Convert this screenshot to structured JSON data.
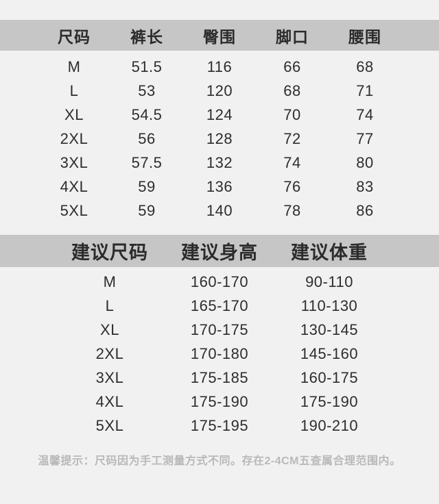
{
  "colors": {
    "background": "#f1f1f1",
    "header_band": "#c6c6c6",
    "text": "#2d2d2d",
    "note_text": "#b9b9b9"
  },
  "size_table": {
    "headers": [
      "尺码",
      "裤长",
      "臀围",
      "脚口",
      "腰围"
    ],
    "rows": [
      [
        "M",
        "51.5",
        "116",
        "66",
        "68"
      ],
      [
        "L",
        "53",
        "120",
        "68",
        "71"
      ],
      [
        "XL",
        "54.5",
        "124",
        "70",
        "74"
      ],
      [
        "2XL",
        "56",
        "128",
        "72",
        "77"
      ],
      [
        "3XL",
        "57.5",
        "132",
        "74",
        "80"
      ],
      [
        "4XL",
        "59",
        "136",
        "76",
        "83"
      ],
      [
        "5XL",
        "59",
        "140",
        "78",
        "86"
      ]
    ]
  },
  "suggestion_table": {
    "headers": [
      "建议尺码",
      "建议身高",
      "建议体重"
    ],
    "rows": [
      [
        "M",
        "160-170",
        "90-110"
      ],
      [
        "L",
        "165-170",
        "110-130"
      ],
      [
        "XL",
        "170-175",
        "130-145"
      ],
      [
        "2XL",
        "170-180",
        "145-160"
      ],
      [
        "3XL",
        "175-185",
        "160-175"
      ],
      [
        "4XL",
        "175-190",
        "175-190"
      ],
      [
        "5XL",
        "175-195",
        "190-210"
      ]
    ]
  },
  "note": {
    "text": "温馨提示：尺码因为手工测量方式不同。存在2-4CM五查属合理范围内。"
  }
}
